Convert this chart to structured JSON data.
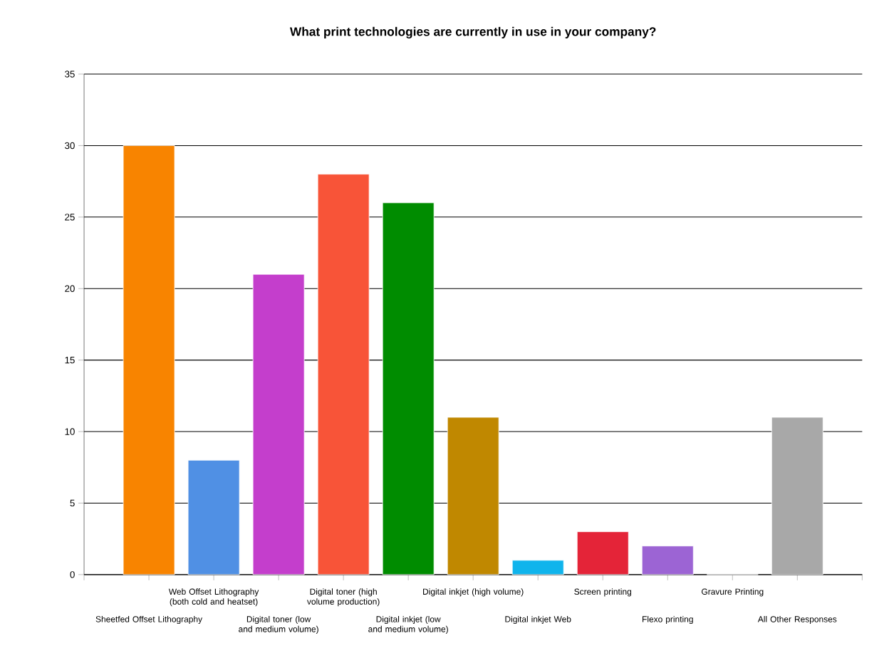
{
  "chart_data": {
    "type": "bar",
    "title": "What print technologies are currently in use in your company?",
    "categories": [
      "Sheetfed Offset Lithography",
      "Web Offset Lithography (both cold and heatset)",
      "Digital toner (low and medium volume)",
      "Digital toner (high volume production)",
      "Digital inkjet (low and medium volume)",
      "Digital inkjet (high volume)",
      "Digital inkjet Web",
      "Screen printing",
      "Flexo printing",
      "Gravure Printing",
      "All Other Responses"
    ],
    "values": [
      30,
      8,
      21,
      28,
      26,
      11,
      1,
      3,
      2,
      0,
      11
    ],
    "colors": [
      "#f88400",
      "#5090e4",
      "#c43ecc",
      "#f85438",
      "#008c00",
      "#c08800",
      "#10b4ec",
      "#e42438",
      "#9c64d4",
      "#808080",
      "#a8a8a8"
    ],
    "ylim": [
      0,
      35
    ],
    "yticks": [
      0,
      5,
      10,
      15,
      20,
      25,
      30,
      35
    ],
    "grid": "y"
  }
}
